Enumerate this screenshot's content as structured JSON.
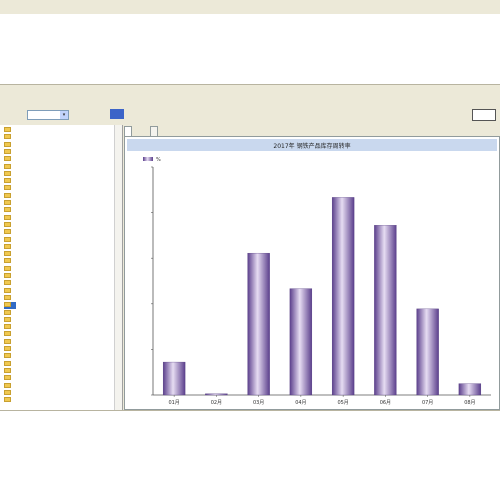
{
  "window": {
    "title": "",
    "toolbar_label": "",
    "query_link": "",
    "go_button": "",
    "right_button": ""
  },
  "tabs": [
    "",
    ""
  ],
  "tree": {
    "items": [
      {
        "code": "",
        "label": ""
      },
      {
        "code": "",
        "label": ""
      },
      {
        "code": "",
        "label": ""
      },
      {
        "code": "",
        "label": ""
      },
      {
        "code": "",
        "label": ""
      },
      {
        "code": "",
        "label": ""
      },
      {
        "code": "",
        "label": ""
      },
      {
        "code": "",
        "label": ""
      },
      {
        "code": "",
        "label": ""
      },
      {
        "code": "",
        "label": ""
      },
      {
        "code": "",
        "label": ""
      },
      {
        "code": "",
        "label": ""
      },
      {
        "code": "",
        "label": ""
      },
      {
        "code": "",
        "label": ""
      },
      {
        "code": "",
        "label": ""
      },
      {
        "code": "",
        "label": ""
      },
      {
        "code": "",
        "label": ""
      },
      {
        "code": "",
        "label": ""
      },
      {
        "code": "",
        "label": ""
      },
      {
        "code": "",
        "label": ""
      },
      {
        "code": "",
        "label": ""
      },
      {
        "code": "",
        "label": ""
      },
      {
        "code": "",
        "label": ""
      },
      {
        "code": "",
        "label": ""
      },
      {
        "code": "",
        "label": ""
      },
      {
        "code": "",
        "label": ""
      },
      {
        "code": "",
        "label": ""
      },
      {
        "code": "",
        "label": ""
      },
      {
        "code": "",
        "label": ""
      },
      {
        "code": "",
        "label": ""
      },
      {
        "code": "",
        "label": ""
      },
      {
        "code": "",
        "label": ""
      },
      {
        "code": "",
        "label": ""
      },
      {
        "code": "",
        "label": ""
      },
      {
        "code": "",
        "label": ""
      },
      {
        "code": "",
        "label": ""
      },
      {
        "code": "",
        "label": ""
      },
      {
        "code": "",
        "label": ""
      }
    ],
    "selected_index": 24
  },
  "colors": {
    "bar_dark": "#5b3f8c",
    "bar_light": "#e6dcf2",
    "title_bar": "#c9d8ee",
    "axis": "#555555"
  },
  "chart_data": {
    "type": "bar",
    "title": "2017年 钢铁产品库存周转率",
    "legend": "%",
    "legend_position": "top-left",
    "categories": [
      "01月",
      "02月",
      "03月",
      "04月",
      "05月",
      "06月",
      "07月",
      "08月"
    ],
    "values": [
      1.3,
      0.05,
      5.6,
      4.2,
      7.8,
      6.7,
      3.4,
      0.45
    ],
    "value_labels": [
      "",
      "",
      "",
      "",
      "",
      "",
      "",
      ""
    ],
    "ylim": [
      0,
      9
    ],
    "yticks": [
      "",
      "",
      "",
      "",
      "",
      ""
    ],
    "grid": false
  }
}
